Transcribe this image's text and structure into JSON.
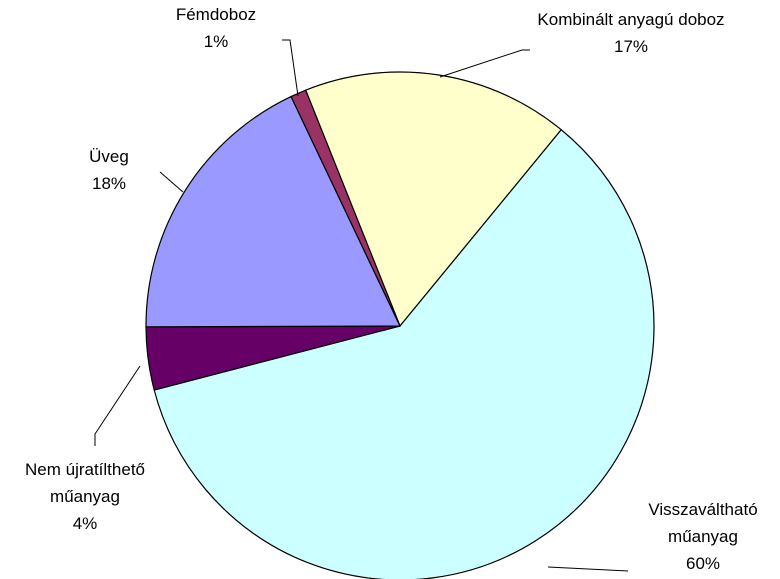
{
  "chart_data": {
    "type": "pie",
    "categories": [
      "Kombinált anyagú doboz",
      "Visszaváltható műanyag",
      "Nem újratílthető műanyag",
      "Üveg",
      "Fémdoboz"
    ],
    "values": [
      17,
      60,
      4,
      18,
      1
    ],
    "value_labels": [
      "17%",
      "60%",
      "4%",
      "18%",
      "1%"
    ],
    "colors": [
      "#ffffcc",
      "#ccffff",
      "#660066",
      "#9999ff",
      "#993366"
    ]
  }
}
